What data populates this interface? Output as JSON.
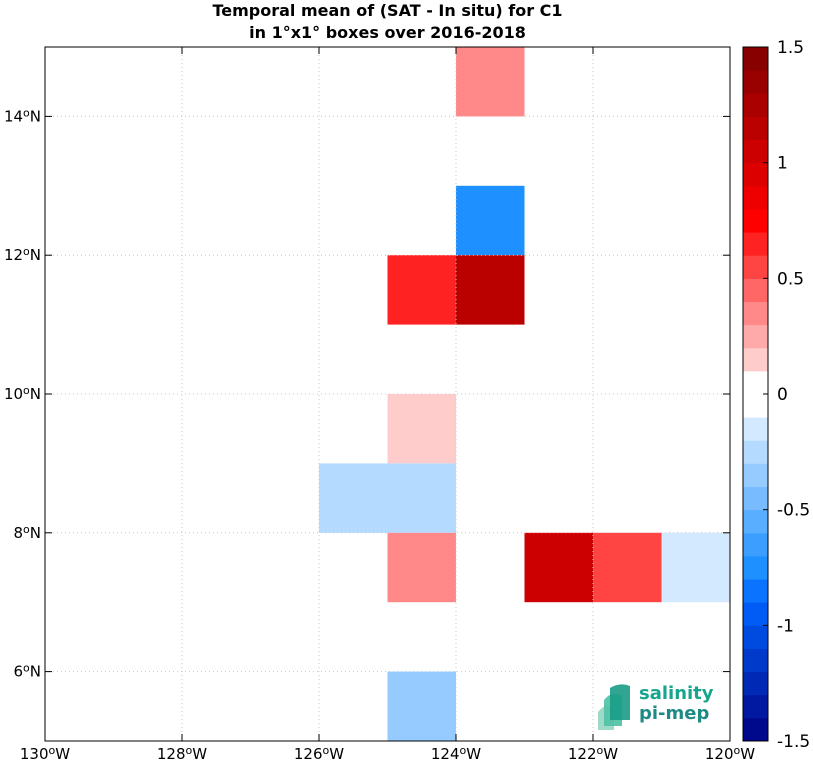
{
  "title": {
    "line1": "Temporal mean of (SAT - In situ) for C1",
    "line2": "in 1°x1° boxes over 2016-2018"
  },
  "chart_data": {
    "type": "heatmap",
    "title": "Temporal mean of (SAT - In situ) for C1 in 1°x1° boxes over 2016-2018",
    "xlim": [
      -130,
      -120
    ],
    "ylim": [
      5,
      15
    ],
    "grid": true,
    "x_ticks": [
      {
        "value": -130,
        "label": "130°W"
      },
      {
        "value": -128,
        "label": "128°W"
      },
      {
        "value": -126,
        "label": "126°W"
      },
      {
        "value": -124,
        "label": "124°W"
      },
      {
        "value": -122,
        "label": "122°W"
      },
      {
        "value": -120,
        "label": "120°W"
      }
    ],
    "y_ticks": [
      {
        "value": 6,
        "label": "6°N"
      },
      {
        "value": 8,
        "label": "8°N"
      },
      {
        "value": 10,
        "label": "10°N"
      },
      {
        "value": 12,
        "label": "12°N"
      },
      {
        "value": 14,
        "label": "14°N"
      }
    ],
    "colorbar": {
      "range": [
        -1.5,
        1.5
      ],
      "levels": 30,
      "ticks": [
        {
          "value": 1.5,
          "label": "1.5"
        },
        {
          "value": 1,
          "label": "1"
        },
        {
          "value": 0.5,
          "label": "0.5"
        },
        {
          "value": 0,
          "label": "0"
        },
        {
          "value": -0.5,
          "label": "-0.5"
        },
        {
          "value": -1,
          "label": "-1"
        },
        {
          "value": -1.5,
          "label": "-1.5"
        }
      ]
    },
    "cells": [
      {
        "lon": [
          -124,
          -123
        ],
        "lat": [
          14,
          15
        ],
        "value": 0.35
      },
      {
        "lon": [
          -124,
          -123
        ],
        "lat": [
          12,
          13
        ],
        "value": -0.75
      },
      {
        "lon": [
          -125,
          -124
        ],
        "lat": [
          11,
          12
        ],
        "value": 0.65
      },
      {
        "lon": [
          -124,
          -123
        ],
        "lat": [
          11,
          12
        ],
        "value": 1.15
      },
      {
        "lon": [
          -125,
          -124
        ],
        "lat": [
          9,
          10
        ],
        "value": 0.15
      },
      {
        "lon": [
          -126,
          -124
        ],
        "lat": [
          8,
          9
        ],
        "value": -0.25
      },
      {
        "lon": [
          -125,
          -124
        ],
        "lat": [
          7,
          8
        ],
        "value": 0.35
      },
      {
        "lon": [
          -123,
          -122
        ],
        "lat": [
          7,
          8
        ],
        "value": 1.05
      },
      {
        "lon": [
          -122,
          -121
        ],
        "lat": [
          7,
          8
        ],
        "value": 0.55
      },
      {
        "lon": [
          -121,
          -120
        ],
        "lat": [
          7,
          8
        ],
        "value": -0.15
      },
      {
        "lon": [
          -125,
          -124
        ],
        "lat": [
          5,
          6
        ],
        "value": -0.35
      }
    ]
  },
  "logo": {
    "line1": "salinity",
    "line2": "pi-mep"
  },
  "colors": {
    "deep_blue": "#000080",
    "blue": "#0064ff",
    "white": "#ffffff",
    "red": "#ff0000",
    "deep_red": "#800000",
    "grid": "#c8c8c8",
    "logo_teal": "#17a58e"
  }
}
